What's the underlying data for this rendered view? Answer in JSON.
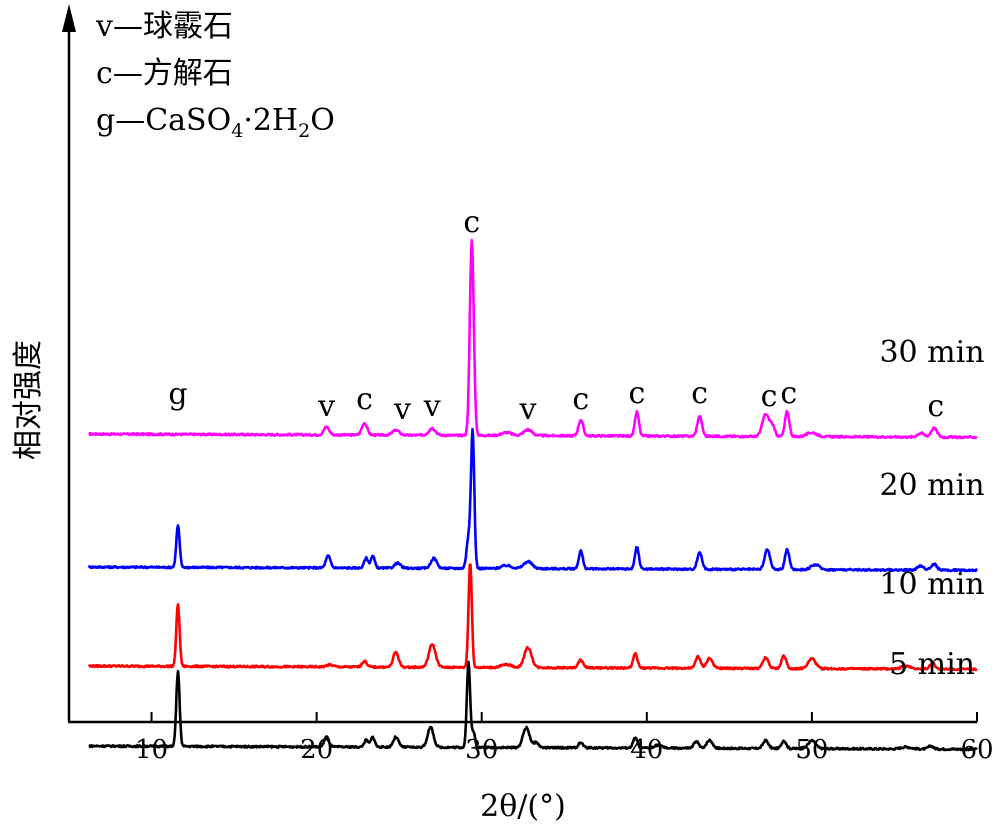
{
  "chart_data": {
    "type": "line",
    "title": "",
    "xlabel": "2θ/(°)",
    "ylabel": "相对强度",
    "xlim": [
      5,
      60
    ],
    "xticks": [
      10,
      20,
      30,
      40,
      50,
      60
    ],
    "grid": false,
    "legend": {
      "placement": "top-left",
      "entries": [
        {
          "symbol": "v",
          "sep": "—",
          "text": "球霰石"
        },
        {
          "symbol": "c",
          "sep": "—",
          "text": "方解石"
        },
        {
          "symbol": "g",
          "sep": "—",
          "text": "CaSO",
          "sub1": "4",
          "mid": "·2H",
          "sub2": "2",
          "end": "O"
        }
      ]
    },
    "y_units": "arbitrary (relative intensity)",
    "series": [
      {
        "name": "30 min",
        "color": "#ff00ff",
        "baseline": 2.25,
        "peaks": [
          {
            "x": 20.6,
            "h": 0.08,
            "w": 0.16
          },
          {
            "x": 22.9,
            "h": 0.12,
            "w": 0.16
          },
          {
            "x": 24.8,
            "h": 0.05,
            "w": 0.2
          },
          {
            "x": 27.0,
            "h": 0.07,
            "w": 0.2
          },
          {
            "x": 29.4,
            "h": 1.95,
            "w": 0.12
          },
          {
            "x": 31.5,
            "h": 0.03,
            "w": 0.3
          },
          {
            "x": 32.8,
            "h": 0.06,
            "w": 0.25
          },
          {
            "x": 36.0,
            "h": 0.16,
            "w": 0.14
          },
          {
            "x": 39.4,
            "h": 0.24,
            "w": 0.12
          },
          {
            "x": 43.2,
            "h": 0.2,
            "w": 0.14
          },
          {
            "x": 47.2,
            "h": 0.22,
            "w": 0.2
          },
          {
            "x": 47.6,
            "h": 0.1,
            "w": 0.15
          },
          {
            "x": 48.5,
            "h": 0.25,
            "w": 0.13
          },
          {
            "x": 50.0,
            "h": 0.04,
            "w": 0.3
          },
          {
            "x": 56.6,
            "h": 0.04,
            "w": 0.2
          },
          {
            "x": 57.4,
            "h": 0.09,
            "w": 0.18
          }
        ]
      },
      {
        "name": "20 min",
        "color": "#0000ff",
        "baseline": 0.92,
        "peaks": [
          {
            "x": 11.6,
            "h": 0.42,
            "w": 0.1
          },
          {
            "x": 20.7,
            "h": 0.12,
            "w": 0.14
          },
          {
            "x": 23.0,
            "h": 0.1,
            "w": 0.12
          },
          {
            "x": 23.4,
            "h": 0.12,
            "w": 0.12
          },
          {
            "x": 24.9,
            "h": 0.05,
            "w": 0.18
          },
          {
            "x": 27.1,
            "h": 0.1,
            "w": 0.18
          },
          {
            "x": 29.2,
            "h": 0.3,
            "w": 0.12
          },
          {
            "x": 29.45,
            "h": 1.35,
            "w": 0.1
          },
          {
            "x": 31.5,
            "h": 0.03,
            "w": 0.3
          },
          {
            "x": 32.8,
            "h": 0.07,
            "w": 0.25
          },
          {
            "x": 36.0,
            "h": 0.18,
            "w": 0.12
          },
          {
            "x": 39.4,
            "h": 0.22,
            "w": 0.12
          },
          {
            "x": 43.2,
            "h": 0.17,
            "w": 0.14
          },
          {
            "x": 47.3,
            "h": 0.2,
            "w": 0.16
          },
          {
            "x": 48.5,
            "h": 0.2,
            "w": 0.13
          },
          {
            "x": 50.2,
            "h": 0.05,
            "w": 0.25
          },
          {
            "x": 56.6,
            "h": 0.04,
            "w": 0.2
          },
          {
            "x": 57.4,
            "h": 0.06,
            "w": 0.16
          }
        ]
      },
      {
        "name": "10 min",
        "color": "#ff0000",
        "baseline": -0.07,
        "peaks": [
          {
            "x": 11.6,
            "h": 0.62,
            "w": 0.1
          },
          {
            "x": 20.8,
            "h": 0.02,
            "w": 0.2
          },
          {
            "x": 22.9,
            "h": 0.06,
            "w": 0.14
          },
          {
            "x": 24.8,
            "h": 0.15,
            "w": 0.16
          },
          {
            "x": 27.0,
            "h": 0.23,
            "w": 0.2
          },
          {
            "x": 29.3,
            "h": 1.05,
            "w": 0.1
          },
          {
            "x": 31.5,
            "h": 0.03,
            "w": 0.3
          },
          {
            "x": 32.8,
            "h": 0.2,
            "w": 0.22
          },
          {
            "x": 36.0,
            "h": 0.08,
            "w": 0.14
          },
          {
            "x": 39.3,
            "h": 0.14,
            "w": 0.13
          },
          {
            "x": 43.1,
            "h": 0.12,
            "w": 0.14
          },
          {
            "x": 43.8,
            "h": 0.1,
            "w": 0.18
          },
          {
            "x": 47.2,
            "h": 0.11,
            "w": 0.16
          },
          {
            "x": 48.3,
            "h": 0.13,
            "w": 0.14
          },
          {
            "x": 50.0,
            "h": 0.1,
            "w": 0.22
          },
          {
            "x": 55.7,
            "h": 0.03,
            "w": 0.3
          },
          {
            "x": 57.3,
            "h": 0.06,
            "w": 0.16
          }
        ]
      },
      {
        "name": "5 min",
        "color": "#000000",
        "baseline": -0.87,
        "peaks": [
          {
            "x": 11.6,
            "h": 0.75,
            "w": 0.1
          },
          {
            "x": 20.6,
            "h": 0.1,
            "w": 0.14
          },
          {
            "x": 23.0,
            "h": 0.07,
            "w": 0.12
          },
          {
            "x": 23.4,
            "h": 0.1,
            "w": 0.12
          },
          {
            "x": 24.8,
            "h": 0.1,
            "w": 0.16
          },
          {
            "x": 26.9,
            "h": 0.2,
            "w": 0.18
          },
          {
            "x": 29.2,
            "h": 0.85,
            "w": 0.1
          },
          {
            "x": 29.5,
            "h": 0.15,
            "w": 0.1
          },
          {
            "x": 32.7,
            "h": 0.2,
            "w": 0.2
          },
          {
            "x": 33.3,
            "h": 0.05,
            "w": 0.15
          },
          {
            "x": 36.0,
            "h": 0.05,
            "w": 0.14
          },
          {
            "x": 39.3,
            "h": 0.1,
            "w": 0.13
          },
          {
            "x": 40.7,
            "h": 0.03,
            "w": 0.2
          },
          {
            "x": 43.0,
            "h": 0.07,
            "w": 0.14
          },
          {
            "x": 43.8,
            "h": 0.08,
            "w": 0.18
          },
          {
            "x": 47.2,
            "h": 0.08,
            "w": 0.16
          },
          {
            "x": 48.3,
            "h": 0.08,
            "w": 0.14
          },
          {
            "x": 50.0,
            "h": 0.08,
            "w": 0.22
          },
          {
            "x": 55.7,
            "h": 0.02,
            "w": 0.3
          },
          {
            "x": 57.2,
            "h": 0.03,
            "w": 0.16
          }
        ]
      }
    ],
    "peak_annotations": [
      {
        "label": "g",
        "x": 11.6,
        "y": 2.55
      },
      {
        "label": "v",
        "x": 20.6,
        "y": 2.43
      },
      {
        "label": "c",
        "x": 22.9,
        "y": 2.5
      },
      {
        "label": "v",
        "x": 25.2,
        "y": 2.4
      },
      {
        "label": "v",
        "x": 27.0,
        "y": 2.43
      },
      {
        "label": "c",
        "x": 29.4,
        "y": 4.27
      },
      {
        "label": "v",
        "x": 32.8,
        "y": 2.4
      },
      {
        "label": "c",
        "x": 36.0,
        "y": 2.5
      },
      {
        "label": "c",
        "x": 39.4,
        "y": 2.56
      },
      {
        "label": "c",
        "x": 43.2,
        "y": 2.56
      },
      {
        "label": "c",
        "x": 47.4,
        "y": 2.53
      },
      {
        "label": "c",
        "x": 48.6,
        "y": 2.56
      },
      {
        "label": "c",
        "x": 57.5,
        "y": 2.43
      }
    ]
  }
}
